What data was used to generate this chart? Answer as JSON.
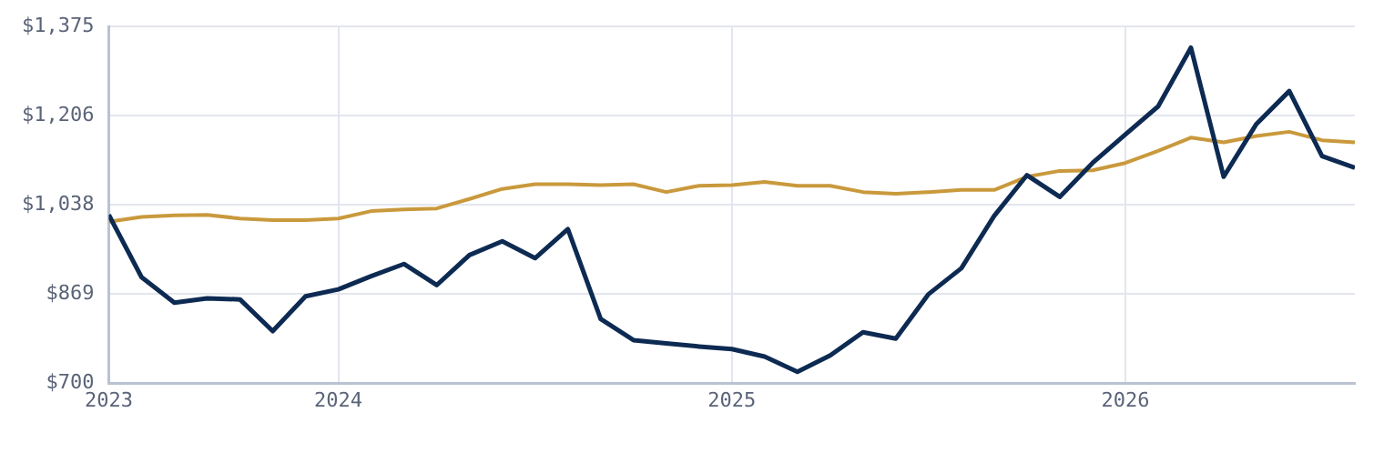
{
  "chart_data": {
    "type": "line",
    "x": [
      "2023-06",
      "2023-07",
      "2023-08",
      "2023-09",
      "2023-10",
      "2023-11",
      "2023-12",
      "2024-01",
      "2024-02",
      "2024-03",
      "2024-04",
      "2024-05",
      "2024-06",
      "2024-07",
      "2024-08",
      "2024-09",
      "2024-10",
      "2024-11",
      "2024-12",
      "2025-01",
      "2025-02",
      "2025-03",
      "2025-04",
      "2025-05",
      "2025-06",
      "2025-07",
      "2025-08",
      "2025-09",
      "2025-10",
      "2025-11",
      "2025-12",
      "2026-01",
      "2026-02",
      "2026-03",
      "2026-04",
      "2026-05",
      "2026-06",
      "2026-07",
      "2026-08"
    ],
    "series": [
      {
        "color": "#0d2a52",
        "values": [
          1019,
          901,
          853,
          861,
          859,
          799,
          865,
          878,
          903,
          926,
          886,
          943,
          969,
          937,
          992,
          822,
          782,
          776,
          770,
          765,
          751,
          722,
          753,
          797,
          785,
          869,
          918,
          1017,
          1094,
          1053,
          1117,
          1171,
          1224,
          1335,
          1091,
          1191,
          1253,
          1130,
          1108
        ]
      },
      {
        "color": "#c9993c",
        "values": [
          1006,
          1015,
          1018,
          1019,
          1012,
          1009,
          1009,
          1012,
          1026,
          1029,
          1031,
          1049,
          1068,
          1077,
          1077,
          1075,
          1077,
          1062,
          1074,
          1075,
          1081,
          1074,
          1074,
          1062,
          1059,
          1062,
          1066,
          1066,
          1091,
          1102,
          1103,
          1117,
          1140,
          1165,
          1156,
          1168,
          1176,
          1160,
          1156
        ]
      }
    ],
    "xlim": [
      "2023-06",
      "2026-08"
    ],
    "xticks": [
      {
        "value": "2023-06",
        "label": "2023"
      },
      {
        "value": "2024-01",
        "label": "2024"
      },
      {
        "value": "2025-01",
        "label": "2025"
      },
      {
        "value": "2026-01",
        "label": "2026"
      }
    ],
    "ylim": [
      700,
      1375
    ],
    "yticks": [
      {
        "value": 700,
        "label": "$700"
      },
      {
        "value": 869,
        "label": "$869"
      },
      {
        "value": 1038,
        "label": "$1,038"
      },
      {
        "value": 1206,
        "label": "$1,206"
      },
      {
        "value": 1375,
        "label": "$1,375"
      }
    ],
    "grid": true,
    "marker": "none",
    "line_style": "solid"
  }
}
